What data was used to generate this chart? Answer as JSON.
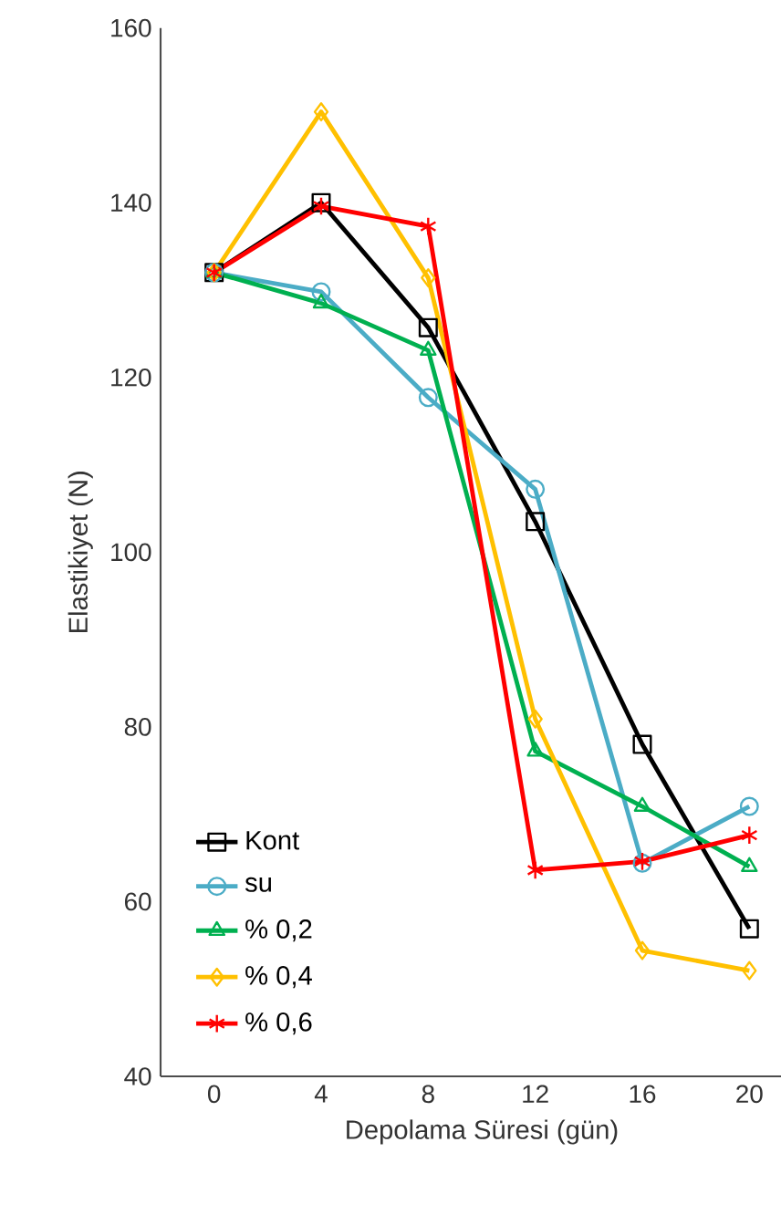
{
  "chart_data": {
    "type": "line",
    "xlabel": "Depolama Süresi (gün)",
    "ylabel": "Elastikiyet (N)",
    "categories": [
      "0",
      "4",
      "8",
      "12",
      "16",
      "20"
    ],
    "ylim": [
      40,
      160
    ],
    "yticks": [
      40,
      60,
      80,
      100,
      120,
      140,
      160
    ],
    "grid": false,
    "legend": "bottom left",
    "line_style": "solid",
    "series": [
      {
        "name": "Kont",
        "color": "#000000",
        "marker": "square",
        "values": [
          132,
          140,
          125.7,
          103.5,
          78,
          56.9
        ]
      },
      {
        "name": "su",
        "color": "#4bacc6",
        "marker": "circle",
        "values": [
          132,
          129.8,
          117.7,
          107.2,
          64.4,
          70.9
        ]
      },
      {
        "name": "% 0,2",
        "color": "#00b050",
        "marker": "triangle",
        "values": [
          132,
          128.5,
          123.1,
          77.2,
          70.9,
          64
        ]
      },
      {
        "name": "% 0,4",
        "color": "#ffc000",
        "marker": "diamond",
        "values": [
          132,
          150.4,
          131.4,
          80.9,
          54.4,
          52.1
        ]
      },
      {
        "name": "% 0,6",
        "color": "#ff0000",
        "marker": "cross",
        "values": [
          132,
          139.6,
          137.3,
          63.6,
          64.6,
          67.6
        ]
      }
    ]
  }
}
